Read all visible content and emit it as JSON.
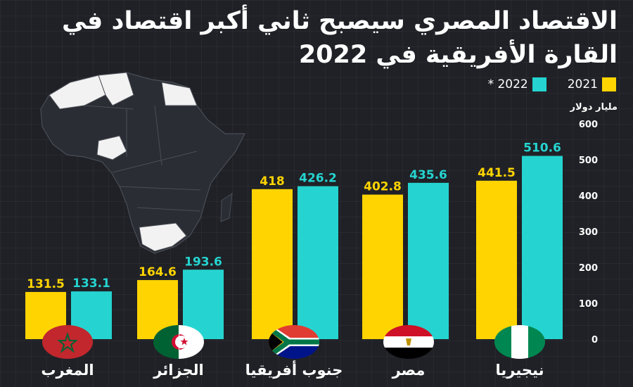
{
  "title": "الاقتصاد المصري سيصبح ثاني أكبر اقتصاد في القارة الأفريقية في 2022",
  "legend": {
    "series_2022": "* 2022",
    "series_2021": "2021"
  },
  "unit": "مليار دولار",
  "colors": {
    "y2021": "#ffd400",
    "y2022": "#25d4d0",
    "background": "#1f2126"
  },
  "flags": [
    "morocco-flag",
    "algeria-flag",
    "south-africa-flag",
    "egypt-flag",
    "nigeria-flag"
  ],
  "chart_data": {
    "type": "bar",
    "categories": [
      "المغرب",
      "الجزائر",
      "جنوب أفريقيا",
      "مصر",
      "نيجيريا"
    ],
    "series": [
      {
        "name": "2021",
        "values": [
          131.5,
          164.6,
          418,
          402.8,
          441.5
        ]
      },
      {
        "name": "* 2022",
        "values": [
          133.1,
          193.6,
          426.2,
          435.6,
          510.6
        ]
      }
    ],
    "ylabel": "مليار دولار",
    "ylim": [
      0,
      600
    ],
    "yticks": [
      0,
      100,
      200,
      300,
      400,
      500,
      600
    ],
    "grid": false,
    "legend_position": "top-right"
  }
}
